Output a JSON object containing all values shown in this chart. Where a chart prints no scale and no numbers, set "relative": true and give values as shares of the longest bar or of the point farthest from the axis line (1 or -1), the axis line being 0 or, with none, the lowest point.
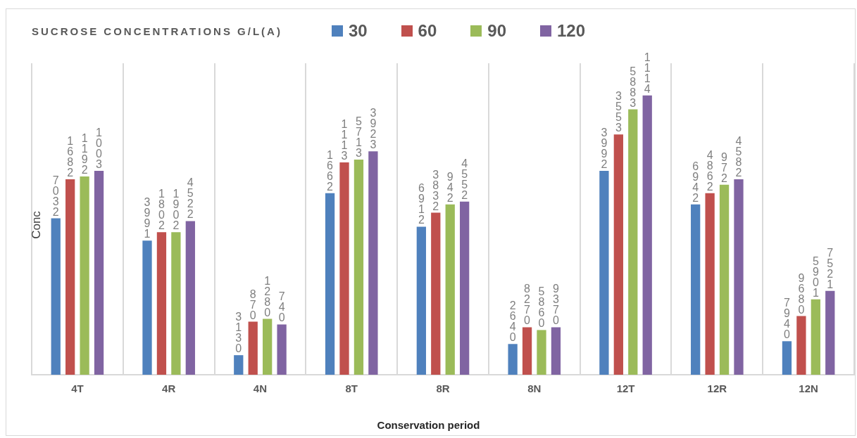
{
  "chart_data": {
    "type": "bar",
    "title": "SUCROSE CONCENTRATIONS G/L(A)",
    "xlabel": "Conservation period",
    "ylabel": "Conc",
    "relative": true,
    "grid": "x",
    "legend": "top right",
    "categories": [
      "4T",
      "4R",
      "4N",
      "8T",
      "8R",
      "8N",
      "12T",
      "12R",
      "12N"
    ],
    "series": [
      {
        "name": "30",
        "color": "#4f81bd",
        "values": [
          0.56,
          0.48,
          0.07,
          0.65,
          0.53,
          0.11,
          0.73,
          0.61,
          0.12
        ]
      },
      {
        "name": "60",
        "color": "#c0504d",
        "values": [
          0.7,
          0.51,
          0.19,
          0.76,
          0.58,
          0.17,
          0.86,
          0.65,
          0.21
        ]
      },
      {
        "name": "90",
        "color": "#9bbb59",
        "values": [
          0.71,
          0.51,
          0.2,
          0.77,
          0.61,
          0.16,
          0.95,
          0.68,
          0.27
        ]
      },
      {
        "name": "120",
        "color": "#8064a2",
        "values": [
          0.73,
          0.55,
          0.18,
          0.8,
          0.62,
          0.17,
          1,
          0.7,
          0.3
        ]
      }
    ],
    "annotations": [
      "7032",
      "1682",
      "1192",
      "1003",
      "3991",
      "1802",
      "1902",
      "4522",
      "3130",
      "870",
      "1280",
      "740",
      "1662",
      "1113",
      "5713",
      "3923",
      "6912",
      "3832",
      "942",
      "4552",
      "2640",
      "8270",
      "5860",
      "9370",
      "3992",
      "3553",
      "5883",
      "1114",
      "6942",
      "4862",
      "972",
      "4582",
      "7940",
      "9680",
      "5901",
      "7521"
    ]
  }
}
